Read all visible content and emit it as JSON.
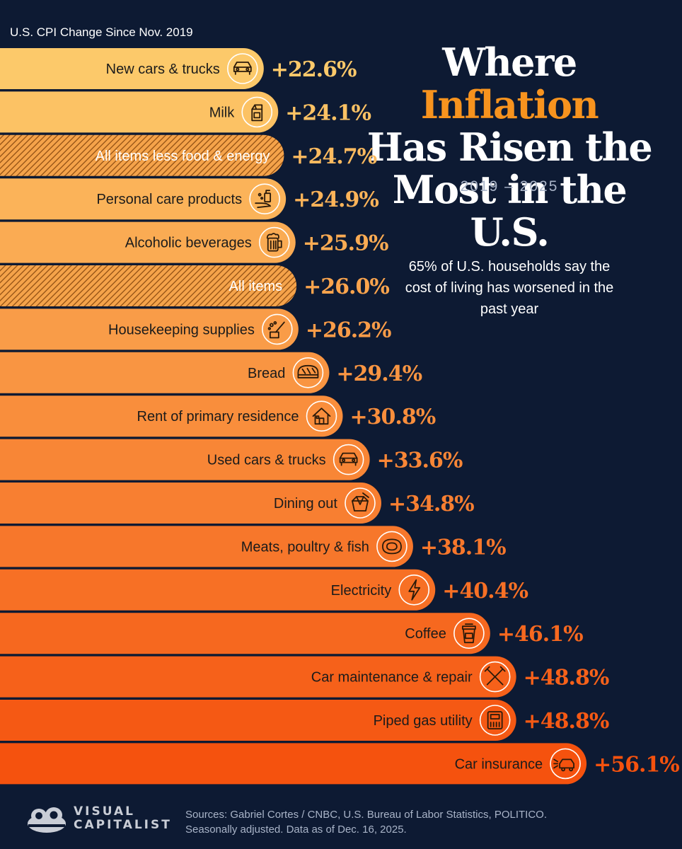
{
  "header": {
    "subtitle": "U.S. CPI Change Since Nov. 2019",
    "title_part1": "Where ",
    "title_accent": "Inflation",
    "title_line2": "Has Risen the",
    "title_line3": "Most in the U.S.",
    "years": "2019 – 2025"
  },
  "note": "65% of U.S. households say the cost of living has worsened in the past year",
  "footer": {
    "logo_line1": "VISUAL",
    "logo_line2": "CAPITALIST",
    "sources_line1": "Sources: Gabriel Cortes / CNBC, U.S. Bureau of Labor Statistics, POLITICO.",
    "sources_line2": "Seasonally adjusted. Data as of Dec. 16, 2025."
  },
  "colors": {
    "background": "#0d1a33",
    "bar_start": "#fcc96a",
    "bar_end": "#f5520e",
    "value_start": "#fcc96a",
    "value_end": "#f5520e"
  },
  "chart_data": {
    "type": "bar",
    "orientation": "horizontal",
    "title": "Where Inflation Has Risen the Most in the U.S.",
    "subtitle": "U.S. CPI Change Since Nov. 2019",
    "unit": "%",
    "categories": [
      "New cars & trucks",
      "Milk",
      "All items less food & energy",
      "Personal care products",
      "Alcoholic beverages",
      "All items",
      "Housekeeping supplies",
      "Bread",
      "Rent of primary residence",
      "Used cars & trucks",
      "Dining out",
      "Meats, poultry & fish",
      "Electricity",
      "Coffee",
      "Car maintenance & repair",
      "Piped gas utility",
      "Car insurance"
    ],
    "values": [
      22.6,
      24.1,
      24.7,
      24.9,
      25.9,
      26.0,
      26.2,
      29.4,
      30.8,
      33.6,
      34.8,
      38.1,
      40.4,
      46.1,
      48.8,
      48.8,
      56.1
    ],
    "value_labels": [
      "+22.6%",
      "+24.1%",
      "+24.7%",
      "+24.9%",
      "+25.9%",
      "+26.0%",
      "+26.2%",
      "+29.4%",
      "+30.8%",
      "+33.6%",
      "+34.8%",
      "+38.1%",
      "+40.4%",
      "+46.1%",
      "+48.8%",
      "+48.8%",
      "+56.1%"
    ],
    "icons": [
      "car-icon",
      "milk-carton-icon",
      "",
      "soap-hand-icon",
      "beer-mug-icon",
      "",
      "cleaning-spray-icon",
      "bread-icon",
      "house-icon",
      "car-icon",
      "takeout-box-icon",
      "steak-icon",
      "lightning-bolt-icon",
      "coffee-cup-icon",
      "wrench-hammer-icon",
      "gas-meter-icon",
      "car-crash-icon"
    ],
    "hatched": [
      false,
      false,
      true,
      false,
      false,
      true,
      false,
      false,
      false,
      false,
      false,
      false,
      false,
      false,
      false,
      false,
      false
    ]
  }
}
